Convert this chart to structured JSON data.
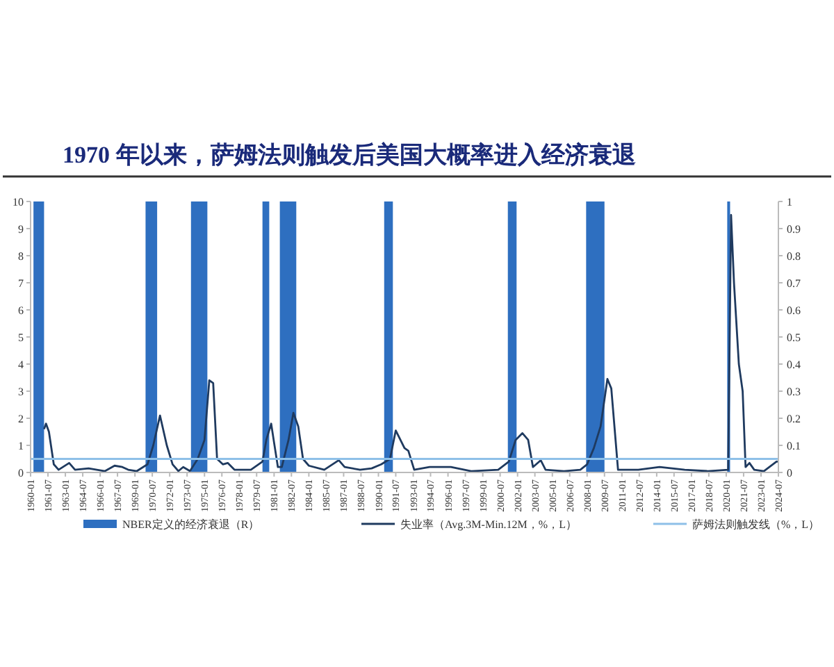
{
  "chart_data": {
    "type": "line",
    "title": "1970 年以来，萨姆法则触发后美国大概率进入经济衰退",
    "xlim": [
      "1960-01",
      "2024-07"
    ],
    "xticks": [
      "1960-01",
      "1961-07",
      "1963-01",
      "1964-07",
      "1966-01",
      "1967-07",
      "1969-01",
      "1970-07",
      "1972-01",
      "1973-07",
      "1975-01",
      "1976-07",
      "1978-01",
      "1979-07",
      "1981-01",
      "1982-07",
      "1984-01",
      "1985-07",
      "1987-01",
      "1988-07",
      "1990-01",
      "1991-07",
      "1993-01",
      "1994-07",
      "1996-01",
      "1997-07",
      "1999-01",
      "2000-07",
      "2002-01",
      "2003-07",
      "2005-01",
      "2006-07",
      "2008-01",
      "2009-07",
      "2011-01",
      "2012-07",
      "2014-01",
      "2015-07",
      "2017-01",
      "2018-07",
      "2020-01",
      "2021-07",
      "2023-01",
      "2024-07"
    ],
    "ylim": [
      0,
      10
    ],
    "yticks": [
      0,
      1,
      2,
      3,
      4,
      5,
      6,
      7,
      8,
      9,
      10
    ],
    "y2lim": [
      0,
      1
    ],
    "y2ticks": [
      0,
      0.1,
      0.2,
      0.3,
      0.4,
      0.5,
      0.6,
      0.7,
      0.8,
      0.9,
      1
    ],
    "grid": false,
    "legend": "bottom",
    "bands": [
      {
        "axis": "x",
        "from": "1960-04",
        "to": "1961-03",
        "label": "NBER定义的经济衰退（R）",
        "color": "#2e6fc0"
      },
      {
        "axis": "x",
        "from": "1969-12",
        "to": "1970-12",
        "color": "#2e6fc0"
      },
      {
        "axis": "x",
        "from": "1973-11",
        "to": "1975-04",
        "color": "#2e6fc0"
      },
      {
        "axis": "x",
        "from": "1980-01",
        "to": "1980-08",
        "color": "#2e6fc0"
      },
      {
        "axis": "x",
        "from": "1981-07",
        "to": "1982-12",
        "color": "#2e6fc0"
      },
      {
        "axis": "x",
        "from": "1990-07",
        "to": "1991-04",
        "color": "#2e6fc0"
      },
      {
        "axis": "x",
        "from": "2001-03",
        "to": "2001-12",
        "color": "#2e6fc0"
      },
      {
        "axis": "x",
        "from": "2007-12",
        "to": "2009-07",
        "color": "#2e6fc0"
      },
      {
        "axis": "x",
        "from": "2020-02",
        "to": "2020-05",
        "color": "#2e6fc0"
      }
    ],
    "series": [
      {
        "name": "失业率（Avg.3M-Min.12M，%，L）",
        "type": "line",
        "color": "#1f3a5f",
        "x": [
          "1961-03",
          "1961-05",
          "1961-08",
          "1962-01",
          "1962-06",
          "1963-05",
          "1963-11",
          "1965-01",
          "1966-06",
          "1967-04",
          "1967-12",
          "1968-06",
          "1969-03",
          "1970-02",
          "1970-08",
          "1971-03",
          "1971-10",
          "1972-04",
          "1972-10",
          "1973-03",
          "1973-10",
          "1974-06",
          "1975-01",
          "1975-06",
          "1975-10",
          "1976-02",
          "1976-08",
          "1977-01",
          "1977-08",
          "1979-01",
          "1980-01",
          "1980-05",
          "1980-10",
          "1981-01",
          "1981-05",
          "1981-09",
          "1982-04",
          "1982-09",
          "1983-02",
          "1983-07",
          "1984-01",
          "1985-05",
          "1986-08",
          "1987-02",
          "1988-06",
          "1989-06",
          "1990-04",
          "1991-01",
          "1991-07",
          "1992-04",
          "1992-08",
          "1993-02",
          "1994-06",
          "1996-04",
          "1998-01",
          "2000-05",
          "2001-04",
          "2001-11",
          "2002-06",
          "2002-12",
          "2003-05",
          "2004-01",
          "2004-06",
          "2006-01",
          "2007-06",
          "2008-01",
          "2008-08",
          "2009-03",
          "2009-10",
          "2010-02",
          "2010-09",
          "2012-06",
          "2014-04",
          "2016-06",
          "2018-06",
          "2020-03",
          "2020-06",
          "2020-09",
          "2021-02",
          "2021-06",
          "2021-09",
          "2022-01",
          "2022-06",
          "2023-04",
          "2024-05",
          "2024-07"
        ],
        "values": [
          1.6,
          1.8,
          1.5,
          0.3,
          0.1,
          0.35,
          0.1,
          0.15,
          0.05,
          0.25,
          0.2,
          0.1,
          0.05,
          0.3,
          1.0,
          2.1,
          1.0,
          0.3,
          0.05,
          0.2,
          0.05,
          0.5,
          1.2,
          3.4,
          3.3,
          0.5,
          0.3,
          0.35,
          0.1,
          0.1,
          0.4,
          1.2,
          1.8,
          1.1,
          0.2,
          0.2,
          1.2,
          2.2,
          1.7,
          0.5,
          0.25,
          0.1,
          0.45,
          0.2,
          0.1,
          0.15,
          0.3,
          0.5,
          1.55,
          0.9,
          0.8,
          0.1,
          0.2,
          0.2,
          0.05,
          0.1,
          0.4,
          1.2,
          1.45,
          1.2,
          0.2,
          0.45,
          0.1,
          0.05,
          0.1,
          0.3,
          0.9,
          1.7,
          3.45,
          3.1,
          0.1,
          0.1,
          0.2,
          0.1,
          0.05,
          0.1,
          9.5,
          7.0,
          4.0,
          3.0,
          0.2,
          0.35,
          0.1,
          0.05,
          0.4,
          0.4
        ]
      },
      {
        "name": "萨姆法则触发线（%，L）",
        "type": "line",
        "color": "#8ec0e8",
        "x": [
          "1960-01",
          "2024-07"
        ],
        "values": [
          0.5,
          0.5
        ]
      }
    ]
  }
}
